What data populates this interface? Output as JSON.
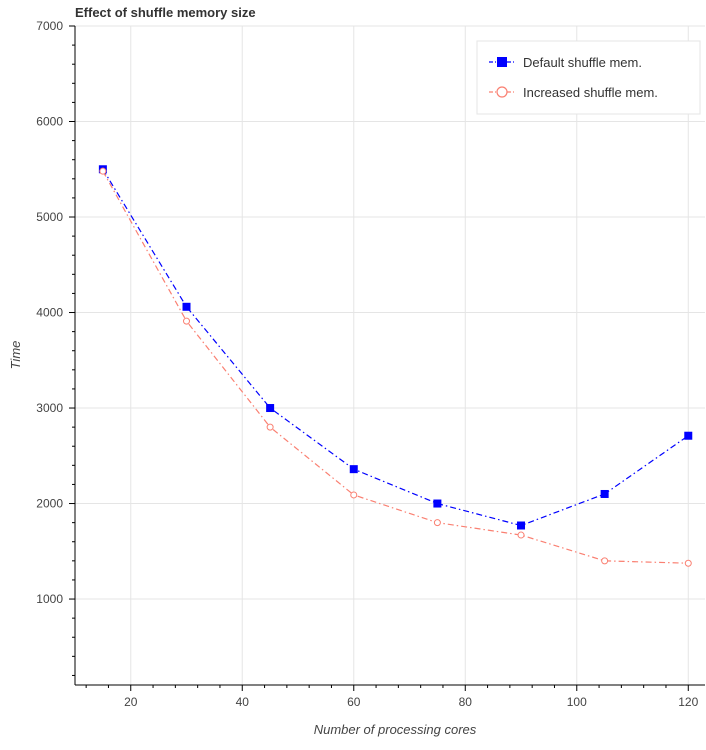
{
  "chart_data": {
    "type": "line",
    "title": "Effect of shuffle memory size",
    "xlabel": "Number of processing cores",
    "ylabel": "Time",
    "xlim": [
      10,
      123
    ],
    "ylim": [
      100,
      7000
    ],
    "x_ticks": [
      20,
      40,
      60,
      80,
      100,
      120
    ],
    "y_ticks": [
      1000,
      2000,
      3000,
      4000,
      5000,
      6000,
      7000
    ],
    "grid": true,
    "legend_position": "top-right",
    "series": [
      {
        "name": "Default shuffle mem.",
        "color": "#0000ff",
        "marker": "square",
        "line_style": "dash-dot",
        "x": [
          15,
          30,
          45,
          60,
          75,
          90,
          105,
          120
        ],
        "values": [
          5500,
          4060,
          3000,
          2360,
          2000,
          1770,
          2100,
          2710
        ]
      },
      {
        "name": "Increased shuffle mem.",
        "color": "#fa8072",
        "marker": "circle",
        "line_style": "dash-dot",
        "x": [
          15,
          30,
          45,
          60,
          75,
          90,
          105,
          120
        ],
        "values": [
          5480,
          3910,
          2800,
          2090,
          1800,
          1670,
          1400,
          1375
        ]
      }
    ]
  }
}
